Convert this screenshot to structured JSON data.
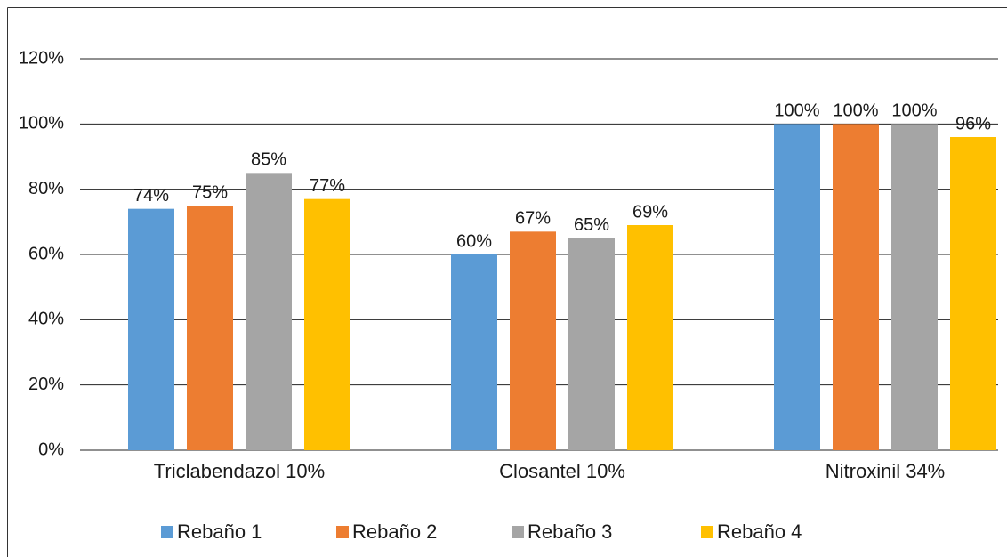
{
  "chart_data": {
    "type": "bar",
    "categories": [
      "Triclabendazol 10%",
      "Closantel 10%",
      "Nitroxinil 34%"
    ],
    "series": [
      {
        "name": "Rebaño 1",
        "color": "#5b9bd5",
        "values": [
          74,
          60,
          100
        ],
        "value_labels": [
          "74%",
          "60%",
          "100%"
        ]
      },
      {
        "name": "Rebaño 2",
        "color": "#ed7d31",
        "values": [
          75,
          67,
          100
        ],
        "value_labels": [
          "75%",
          "67%",
          "100%"
        ]
      },
      {
        "name": "Rebaño 3",
        "color": "#a5a5a5",
        "values": [
          85,
          65,
          100
        ],
        "value_labels": [
          "85%",
          "65%",
          "100%"
        ]
      },
      {
        "name": "Rebaño 4",
        "color": "#ffc000",
        "values": [
          77,
          69,
          96
        ],
        "value_labels": [
          "77%",
          "69%",
          "96%"
        ]
      }
    ],
    "ylim": [
      0,
      120
    ],
    "yticks": [
      {
        "value": 0,
        "label": "0%"
      },
      {
        "value": 20,
        "label": "20%"
      },
      {
        "value": 40,
        "label": "40%"
      },
      {
        "value": 60,
        "label": "60%"
      },
      {
        "value": 80,
        "label": "80%"
      },
      {
        "value": 100,
        "label": "100%"
      },
      {
        "value": 120,
        "label": "120%"
      }
    ],
    "grid": true,
    "legend": "bottom"
  }
}
